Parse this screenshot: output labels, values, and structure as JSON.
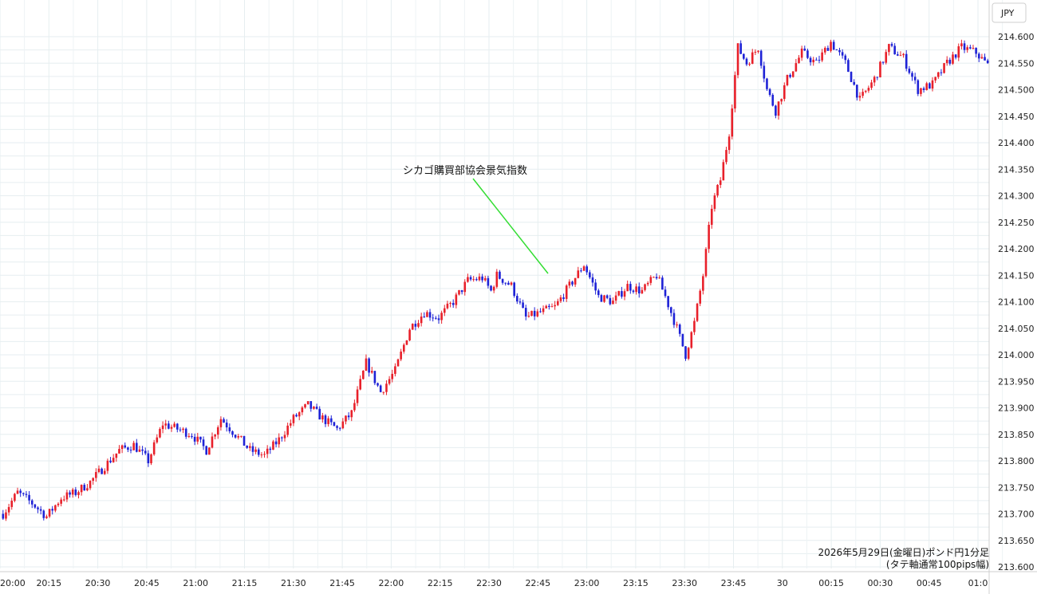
{
  "chart_data": {
    "type": "candlestick",
    "currency_label": "JPY",
    "annotation": "シカゴ購買部協会景気指数",
    "caption_line1": "2026年5月29日(金曜日)ポンド円1分足",
    "caption_line2": "(タテ軸通常100pips幅)",
    "x_tick_labels": [
      "20:00",
      "20:15",
      "20:30",
      "20:45",
      "21:00",
      "21:15",
      "21:30",
      "21:45",
      "22:00",
      "22:15",
      "22:30",
      "22:45",
      "23:00",
      "23:15",
      "23:30",
      "23:45",
      "30",
      "00:15",
      "00:30",
      "00:45",
      "01:0"
    ],
    "y_tick_labels": [
      "213.600",
      "213.650",
      "213.700",
      "213.750",
      "213.800",
      "213.850",
      "213.900",
      "213.950",
      "214.000",
      "214.050",
      "214.100",
      "214.150",
      "214.200",
      "214.250",
      "214.300",
      "214.350",
      "214.400",
      "214.450",
      "214.500",
      "214.550",
      "214.600"
    ],
    "ylim": [
      213.6,
      214.6
    ],
    "ohlc_close_path": [
      [
        0,
        213.7
      ],
      [
        5,
        213.74
      ],
      [
        10,
        213.72
      ],
      [
        15,
        213.695
      ],
      [
        20,
        213.73
      ],
      [
        25,
        213.74
      ],
      [
        30,
        213.76
      ],
      [
        40,
        213.82
      ],
      [
        45,
        213.83
      ],
      [
        50,
        213.8
      ],
      [
        55,
        213.87
      ],
      [
        60,
        213.86
      ],
      [
        65,
        213.85
      ],
      [
        70,
        213.82
      ],
      [
        75,
        213.88
      ],
      [
        80,
        213.85
      ],
      [
        85,
        213.82
      ],
      [
        90,
        213.81
      ],
      [
        95,
        213.84
      ],
      [
        100,
        213.88
      ],
      [
        105,
        213.905
      ],
      [
        110,
        213.88
      ],
      [
        115,
        213.86
      ],
      [
        120,
        213.89
      ],
      [
        125,
        213.985
      ],
      [
        130,
        213.93
      ],
      [
        135,
        213.97
      ],
      [
        140,
        214.05
      ],
      [
        145,
        214.08
      ],
      [
        150,
        214.07
      ],
      [
        155,
        214.1
      ],
      [
        160,
        214.14
      ],
      [
        165,
        214.145
      ],
      [
        168,
        214.12
      ],
      [
        170,
        214.15
      ],
      [
        175,
        214.13
      ],
      [
        180,
        214.07
      ],
      [
        185,
        214.08
      ],
      [
        190,
        214.09
      ],
      [
        195,
        214.13
      ],
      [
        200,
        214.17
      ],
      [
        205,
        214.11
      ],
      [
        210,
        214.1
      ],
      [
        215,
        214.13
      ],
      [
        220,
        214.12
      ],
      [
        225,
        214.15
      ],
      [
        228,
        214.11
      ],
      [
        232,
        214.05
      ],
      [
        235,
        214.0
      ],
      [
        238,
        214.06
      ],
      [
        241,
        214.15
      ],
      [
        244,
        214.28
      ],
      [
        247,
        214.33
      ],
      [
        250,
        214.42
      ],
      [
        253,
        214.58
      ],
      [
        256,
        214.55
      ],
      [
        260,
        214.58
      ],
      [
        263,
        214.5
      ],
      [
        266,
        214.46
      ],
      [
        270,
        214.52
      ],
      [
        275,
        214.57
      ],
      [
        280,
        214.55
      ],
      [
        285,
        214.59
      ],
      [
        290,
        214.55
      ],
      [
        295,
        214.48
      ],
      [
        300,
        214.52
      ],
      [
        305,
        214.58
      ],
      [
        310,
        214.56
      ],
      [
        315,
        214.5
      ],
      [
        320,
        214.51
      ],
      [
        325,
        214.55
      ],
      [
        330,
        214.58
      ],
      [
        335,
        214.57
      ],
      [
        340,
        214.54
      ]
    ]
  }
}
